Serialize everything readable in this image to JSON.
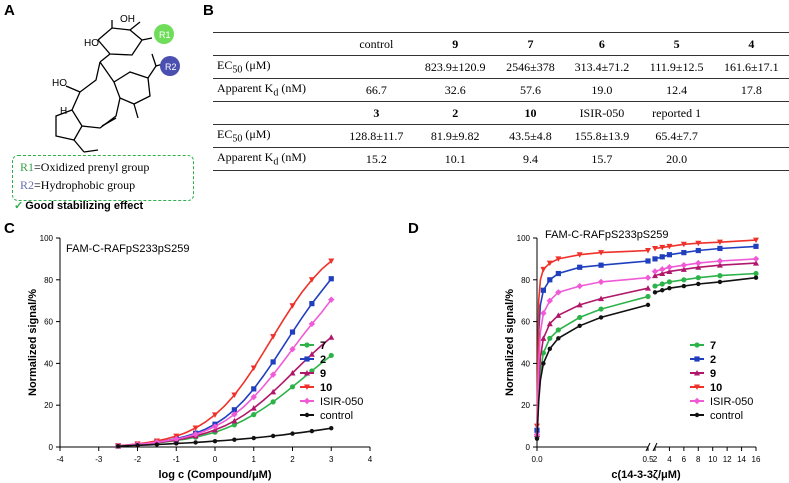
{
  "panels": {
    "a": "A",
    "b": "B",
    "c": "C",
    "d": "D"
  },
  "panel_a": {
    "structure_labels": {
      "r1": "R1",
      "r2": "R2",
      "ho1": "HO",
      "oh": "OH",
      "ho2": "HO",
      "h": "H"
    },
    "legend": {
      "r1_name": "R1",
      "r1_desc": "=Oxidized prenyl group",
      "r2_name": "R2",
      "r2_desc": "=Hydrophobic group",
      "check": "✓",
      "summary": "Good stabilizing effect"
    },
    "colors": {
      "r1": "#6fdc5a",
      "r2": "#4a4fb0",
      "legend_border": "#2fae4c"
    }
  },
  "table": {
    "row1_headers": [
      "control",
      "9",
      "7",
      "6",
      "5",
      "4"
    ],
    "row2_headers": [
      "3",
      "2",
      "10",
      "ISIR-050",
      "reported 1"
    ],
    "ec50_label_main": "EC",
    "ec50_label_sub": "50",
    "ec50_label_unit": " (μM)",
    "kd_label_main": "Apparent K",
    "kd_label_sub": "d",
    "kd_label_unit": " (nM)",
    "ec50_1": [
      "",
      "823.9±120.9",
      "2546±378",
      "313.4±71.2",
      "111.9±12.5",
      "161.6±17.1"
    ],
    "kd_1": [
      "66.7",
      "32.6",
      "57.6",
      "19.0",
      "12.4",
      "17.8"
    ],
    "ec50_2": [
      "128.8±11.7",
      "81.9±9.82",
      "43.5±4.8",
      "155.8±13.9",
      "65.4±7.7"
    ],
    "kd_2": [
      "15.2",
      "10.1",
      "9.4",
      "15.7",
      "20.0"
    ]
  },
  "chart_data": [
    {
      "type": "line",
      "inset_title": "FAM-C-RAFpS233pS259",
      "xlabel": "log c (Compound/μM)",
      "ylabel": "Normalized signal/%",
      "xlim": [
        -4,
        4
      ],
      "ylim": [
        0,
        100
      ],
      "xticks": [
        -4,
        -3,
        -2,
        -1,
        0,
        1,
        2,
        3,
        4
      ],
      "yticks": [
        0,
        20,
        40,
        60,
        80,
        100
      ],
      "x": [
        -2.5,
        -2.25,
        -2,
        -1.75,
        -1.5,
        -1.25,
        -1,
        -0.75,
        -0.5,
        -0.25,
        0,
        0.25,
        0.5,
        0.75,
        1,
        1.25,
        1.5,
        1.75,
        2,
        2.25,
        2.5,
        2.75,
        3
      ],
      "series": [
        {
          "name": "7",
          "color": "#2db34a",
          "values": [
            0.5,
            0.8,
            1.2,
            1.6,
            2.0,
            2.5,
            3.1,
            3.8,
            4.7,
            5.8,
            7.1,
            8.7,
            10.6,
            12.9,
            15.5,
            18.4,
            21.6,
            25.1,
            28.8,
            32.6,
            36.4,
            40.2,
            43.8
          ]
        },
        {
          "name": "2",
          "color": "#1f3fbf",
          "values": [
            0.5,
            0.9,
            1.3,
            1.8,
            2.4,
            3.1,
            4.0,
            5.1,
            6.6,
            8.5,
            10.9,
            14.0,
            17.8,
            22.4,
            27.8,
            34.0,
            40.7,
            47.8,
            55.0,
            62.0,
            68.6,
            74.6,
            80.5
          ]
        },
        {
          "name": "9",
          "color": "#b0176a",
          "values": [
            0.5,
            0.8,
            1.2,
            1.6,
            2.1,
            2.7,
            3.4,
            4.2,
            5.3,
            6.6,
            8.2,
            10.1,
            12.5,
            15.3,
            18.6,
            22.3,
            26.4,
            30.8,
            35.4,
            40.0,
            44.4,
            48.6,
            52.5
          ]
        },
        {
          "name": "10",
          "color": "#f0302a",
          "values": [
            0.6,
            1.0,
            1.5,
            2.1,
            2.9,
            3.9,
            5.2,
            6.9,
            9.1,
            11.9,
            15.4,
            19.7,
            24.9,
            31.0,
            37.8,
            45.2,
            52.8,
            60.4,
            67.6,
            74.2,
            80.0,
            85.0,
            89.0
          ]
        },
        {
          "name": "ISIR-050",
          "color": "#f05ad6",
          "values": [
            0.5,
            0.9,
            1.3,
            1.7,
            2.3,
            3.0,
            3.8,
            4.8,
            6.1,
            7.7,
            9.8,
            12.4,
            15.6,
            19.4,
            23.9,
            29.0,
            34.6,
            40.6,
            46.8,
            53.0,
            58.9,
            64.4,
            70.5
          ]
        },
        {
          "name": "control",
          "color": "#111111",
          "values": [
            0.4,
            0.6,
            0.8,
            1.0,
            1.2,
            1.4,
            1.7,
            1.9,
            2.2,
            2.5,
            2.8,
            3.1,
            3.5,
            3.9,
            4.3,
            4.8,
            5.3,
            5.8,
            6.4,
            7.0,
            7.6,
            8.3,
            9.0
          ]
        }
      ],
      "legend": "right"
    },
    {
      "type": "line",
      "inset_title": "FAM-C-RAFpS233pS259",
      "xlabel": "c(14-3-3ζ/μM)",
      "ylabel": "Normalized signal/%",
      "ylim": [
        0,
        100
      ],
      "yticks": [
        0,
        20,
        40,
        60,
        80,
        100
      ],
      "xticks": [
        "0.0",
        "0.5",
        "2",
        "4",
        "6",
        "8",
        "10",
        "12",
        "14",
        "16"
      ],
      "axis_break": [
        0.52,
        2
      ],
      "x": [
        0,
        0.008,
        0.016,
        0.03,
        0.06,
        0.1,
        0.2,
        0.3,
        0.52,
        2,
        3,
        4,
        6,
        8,
        11,
        16
      ],
      "series": [
        {
          "name": "7",
          "color": "#2db34a",
          "values": [
            5,
            25,
            36,
            45,
            52,
            56,
            62,
            66,
            72,
            77,
            78,
            79,
            80,
            81,
            82,
            83
          ]
        },
        {
          "name": "2",
          "color": "#1f3fbf",
          "values": [
            8,
            55,
            68,
            75,
            80,
            83,
            86,
            87,
            89,
            90,
            91,
            92,
            93,
            94,
            95,
            96
          ]
        },
        {
          "name": "9",
          "color": "#b0176a",
          "values": [
            6,
            30,
            43,
            52,
            59,
            63,
            68,
            71,
            76,
            82,
            83,
            84,
            85,
            86,
            87,
            88
          ]
        },
        {
          "name": "10",
          "color": "#f0302a",
          "values": [
            10,
            70,
            80,
            85,
            88,
            90,
            92,
            93,
            94,
            95,
            95.5,
            96,
            97,
            97.5,
            98,
            99
          ]
        },
        {
          "name": "ISIR-050",
          "color": "#f05ad6",
          "values": [
            6,
            40,
            55,
            64,
            70,
            74,
            77,
            79,
            81,
            84,
            85,
            86,
            87,
            88,
            89,
            90
          ]
        },
        {
          "name": "control",
          "color": "#111111",
          "values": [
            4,
            22,
            32,
            40,
            47,
            52,
            58,
            62,
            68,
            74,
            75,
            76,
            77,
            78,
            79,
            81
          ]
        }
      ],
      "legend": "right"
    }
  ]
}
